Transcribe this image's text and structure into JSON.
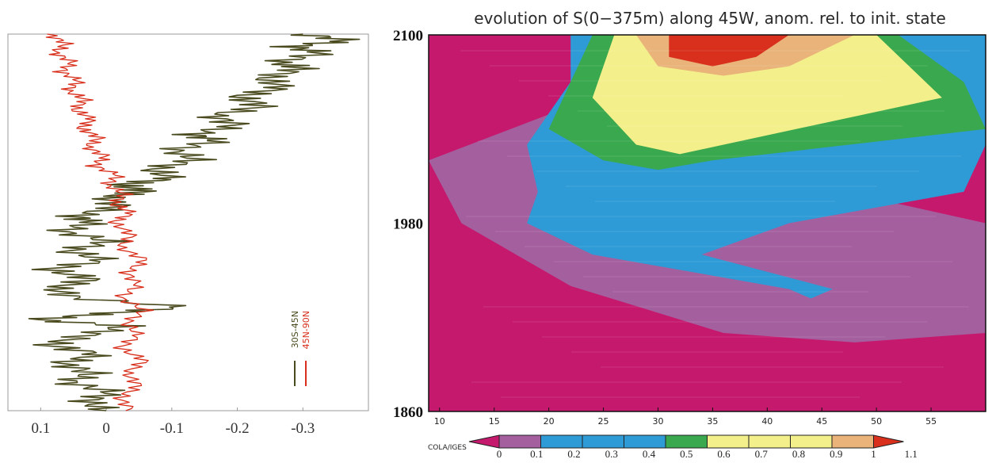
{
  "chart_data": [
    {
      "type": "line",
      "panel": "left",
      "xlim": [
        0.15,
        -0.4
      ],
      "x_ticks": [
        0.1,
        0,
        -0.1,
        -0.2,
        -0.3
      ],
      "x_tick_labels": [
        "0.1",
        "0",
        "-0.1",
        "-0.2",
        "-0.3"
      ],
      "ylim": [
        1860,
        2100
      ],
      "series": [
        {
          "name": "30S-45N",
          "color": "#4a4a1f",
          "points": [
            [
              0.0,
              1860
            ],
            [
              0.03,
              1866
            ],
            [
              -0.01,
              1872
            ],
            [
              0.06,
              1878
            ],
            [
              0.02,
              1884
            ],
            [
              0.07,
              1890
            ],
            [
              0.01,
              1896
            ],
            [
              0.09,
              1902
            ],
            [
              0.03,
              1908
            ],
            [
              -0.03,
              1914
            ],
            [
              0.11,
              1918
            ],
            [
              0.0,
              1922
            ],
            [
              -0.12,
              1926
            ],
            [
              0.05,
              1932
            ],
            [
              0.08,
              1938
            ],
            [
              0.02,
              1944
            ],
            [
              0.09,
              1950
            ],
            [
              0.0,
              1956
            ],
            [
              0.06,
              1962
            ],
            [
              -0.01,
              1968
            ],
            [
              0.07,
              1974
            ],
            [
              0.02,
              1980
            ],
            [
              0.05,
              1984
            ],
            [
              -0.02,
              1990
            ],
            [
              0.0,
              1996
            ],
            [
              -0.06,
              2000
            ],
            [
              -0.02,
              2004
            ],
            [
              -0.1,
              2008
            ],
            [
              -0.07,
              2014
            ],
            [
              -0.14,
              2020
            ],
            [
              -0.1,
              2026
            ],
            [
              -0.17,
              2032
            ],
            [
              -0.13,
              2036
            ],
            [
              -0.2,
              2042
            ],
            [
              -0.16,
              2048
            ],
            [
              -0.24,
              2054
            ],
            [
              -0.2,
              2060
            ],
            [
              -0.27,
              2066
            ],
            [
              -0.24,
              2072
            ],
            [
              -0.3,
              2078
            ],
            [
              -0.26,
              2082
            ],
            [
              -0.33,
              2088
            ],
            [
              -0.28,
              2092
            ],
            [
              -0.37,
              2096
            ],
            [
              -0.3,
              2100
            ]
          ]
        },
        {
          "name": "45N-90N",
          "color": "#d8301c",
          "points": [
            [
              -0.04,
              1860
            ],
            [
              -0.02,
              1868
            ],
            [
              -0.05,
              1876
            ],
            [
              -0.03,
              1884
            ],
            [
              -0.06,
              1892
            ],
            [
              -0.02,
              1900
            ],
            [
              -0.05,
              1908
            ],
            [
              -0.03,
              1916
            ],
            [
              -0.06,
              1924
            ],
            [
              -0.02,
              1932
            ],
            [
              -0.05,
              1940
            ],
            [
              -0.03,
              1948
            ],
            [
              -0.06,
              1956
            ],
            [
              -0.02,
              1964
            ],
            [
              -0.04,
              1972
            ],
            [
              -0.01,
              1980
            ],
            [
              -0.04,
              1986
            ],
            [
              -0.01,
              1992
            ],
            [
              -0.03,
              1998
            ],
            [
              0.0,
              2004
            ],
            [
              -0.02,
              2010
            ],
            [
              0.02,
              2016
            ],
            [
              0.0,
              2022
            ],
            [
              0.03,
              2028
            ],
            [
              0.01,
              2034
            ],
            [
              0.04,
              2040
            ],
            [
              0.02,
              2046
            ],
            [
              0.05,
              2052
            ],
            [
              0.03,
              2058
            ],
            [
              0.06,
              2064
            ],
            [
              0.04,
              2070
            ],
            [
              0.07,
              2076
            ],
            [
              0.05,
              2082
            ],
            [
              0.08,
              2088
            ],
            [
              0.06,
              2094
            ],
            [
              0.09,
              2100
            ]
          ]
        }
      ]
    },
    {
      "type": "heatmap",
      "panel": "right",
      "title": "evolution of S(0−375m) along 45W, anom. rel. to init. state",
      "xlim": [
        9,
        60
      ],
      "x_ticks": [
        10,
        15,
        20,
        25,
        30,
        35,
        40,
        45,
        50,
        55
      ],
      "ylim": [
        1860,
        2100
      ],
      "y_ticks": [
        1860,
        1980,
        2100
      ],
      "bands": [
        {
          "level": 0.1,
          "color": "#a45f9e",
          "rows": [
            [
              1910,
              36,
              60
            ],
            [
              1940,
              22,
              60
            ],
            [
              1980,
              12,
              60
            ],
            [
              2020,
              9,
              34
            ],
            [
              2060,
              24,
              36
            ]
          ]
        },
        {
          "level": 0.3,
          "color": "#2e9bd6",
          "rows": [
            [
              1938,
              42,
              46
            ],
            [
              1960,
              24,
              34
            ],
            [
              1980,
              18,
              42
            ],
            [
              2000,
              19,
              58
            ],
            [
              2030,
              18,
              60
            ],
            [
              2070,
              22,
              60
            ],
            [
              2100,
              22,
              60
            ]
          ]
        },
        {
          "level": 0.5,
          "color": "#3aa84e",
          "rows": [
            [
              2020,
              25,
              35
            ],
            [
              2040,
              20,
              60
            ],
            [
              2070,
              22,
              58
            ],
            [
              2100,
              24,
              52
            ]
          ]
        },
        {
          "level": 0.7,
          "color": "#f3ef8a",
          "rows": [
            [
              2030,
              28,
              36
            ],
            [
              2060,
              24,
              56
            ],
            [
              2100,
              26,
              50
            ]
          ]
        },
        {
          "level": 0.9,
          "color": "#e9b37a",
          "rows": [
            [
              2080,
              30,
              42
            ],
            [
              2100,
              28,
              48
            ]
          ]
        },
        {
          "level": 1.0,
          "color": "#d8301c",
          "rows": [
            [
              2086,
              31,
              39
            ],
            [
              2100,
              31,
              42
            ]
          ]
        }
      ],
      "background_color": "#c5196e",
      "colorbar": {
        "label": "COLA/IGES",
        "ticks": [
          "0",
          "0.1",
          "0.2",
          "0.3",
          "0.4",
          "0.5",
          "0.6",
          "0.7",
          "0.8",
          "0.9",
          "1",
          "1.1"
        ],
        "colors": [
          "#c5196e",
          "#a45f9e",
          "#2e9bd6",
          "#2e9bd6",
          "#2e9bd6",
          "#3aa84e",
          "#f3ef8a",
          "#f3ef8a",
          "#f3ef8a",
          "#e9b37a",
          "#d8301c"
        ]
      }
    }
  ]
}
